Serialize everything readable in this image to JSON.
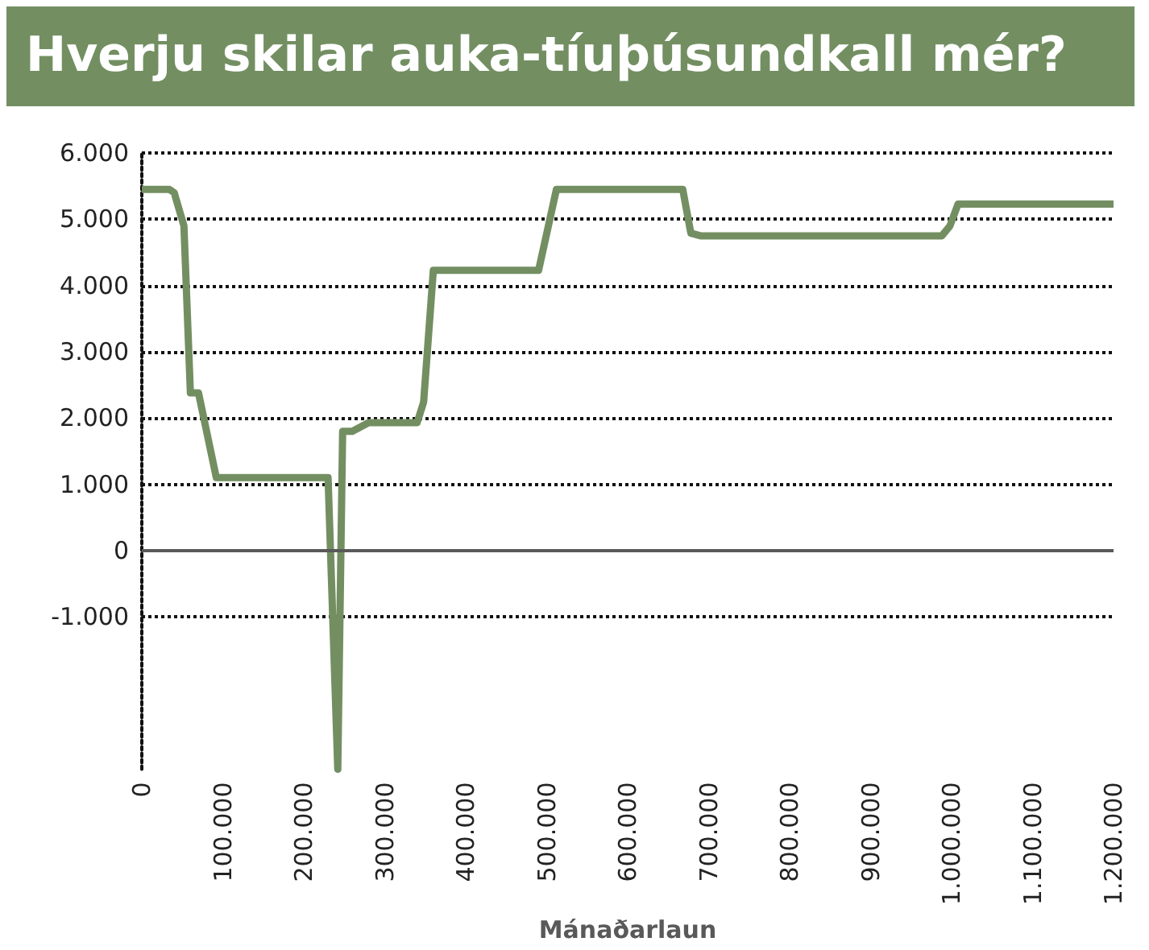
{
  "chart_data": {
    "type": "line",
    "title": "Hverju skilar auka-tíuþúsundkall mér?",
    "xlabel": "Mánaðarlaun",
    "x": [
      0,
      34000,
      40000,
      52000,
      60000,
      70000,
      92000,
      230000,
      242000,
      248000,
      260000,
      280000,
      340000,
      348000,
      360000,
      490000,
      512000,
      668000,
      678000,
      690000,
      988000,
      998000,
      1008000,
      1200000
    ],
    "series": [
      {
        "color": "#738f62",
        "values": [
          5450,
          5450,
          5400,
          4900,
          2380,
          2380,
          1100,
          1100,
          -3300,
          1800,
          1800,
          1930,
          1930,
          2240,
          4230,
          4230,
          5450,
          5450,
          4790,
          4750,
          4750,
          4900,
          5230,
          5230
        ]
      }
    ],
    "xlim": [
      0,
      1200000
    ],
    "xticks": [
      0,
      {
        "value": 100000,
        "label": "100.000"
      },
      {
        "value": 200000,
        "label": "200.000"
      },
      {
        "value": 300000,
        "label": "300.000"
      },
      {
        "value": 400000,
        "label": "400.000"
      },
      {
        "value": 500000,
        "label": "500.000"
      },
      {
        "value": 600000,
        "label": "600.000"
      },
      {
        "value": 700000,
        "label": "700.000"
      },
      {
        "value": 800000,
        "label": "800.000"
      },
      {
        "value": 900000,
        "label": "900.000"
      },
      {
        "value": 1000000,
        "label": "1.000.000"
      },
      {
        "value": 1100000,
        "label": "1.100.000"
      },
      {
        "value": 1200000,
        "label": "1.200.000"
      }
    ],
    "ylim": [
      -3300,
      6000
    ],
    "yticks": [
      {
        "value": -1000,
        "label": "-1.000"
      },
      0,
      {
        "value": 1000,
        "label": "1.000"
      },
      {
        "value": 2000,
        "label": "2.000"
      },
      {
        "value": 3000,
        "label": "3.000"
      },
      {
        "value": 4000,
        "label": "4.000"
      },
      {
        "value": 5000,
        "label": "5.000"
      },
      {
        "value": 6000,
        "label": "6.000"
      }
    ],
    "ref_lines": [
      {
        "axis": "y",
        "value": 0,
        "color": "#595959",
        "line_style": "solid"
      }
    ],
    "grid": "y",
    "marker": "none",
    "line_style": "solid"
  }
}
